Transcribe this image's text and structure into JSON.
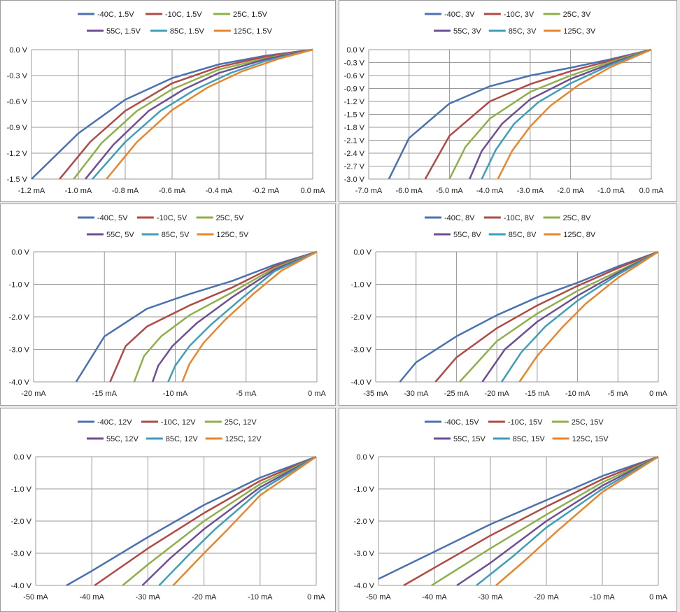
{
  "colors": {
    "-40C": "#4a72b0",
    "-10C": "#b04a46",
    "25C": "#8eb04a",
    "55C": "#6e4f94",
    "85C": "#3f9fb8",
    "125C": "#e8862e",
    "grid": "#9a9a9a"
  },
  "chart_data": [
    {
      "type": "line",
      "legend": {
        "position": "top",
        "rows": [
          [
            0,
            1,
            2
          ],
          [
            3,
            4,
            5
          ]
        ]
      },
      "xlim": [
        -1.2,
        0
      ],
      "ylim": [
        -1.5,
        0
      ],
      "xticks": [
        -1.2,
        -1.0,
        -0.8,
        -0.6,
        -0.4,
        -0.2,
        0.0
      ],
      "xtick_labels": [
        "-1.2 mA",
        "-1.0 mA",
        "-0.8 mA",
        "-0.6 mA",
        "-0.4 mA",
        "-0.2 mA",
        "0.0 mA"
      ],
      "yticks": [
        0,
        -0.3,
        -0.6,
        -0.9,
        -1.2,
        -1.5
      ],
      "ytick_labels": [
        "0.0 V",
        "-0.3 V",
        "-0.6 V",
        "-0.9 V",
        "-1.2 V",
        "-1.5 V"
      ],
      "grid": true,
      "series": [
        {
          "name": "-40C, 1.5V",
          "color_key": "-40C",
          "x": [
            0,
            -0.2,
            -0.4,
            -0.6,
            -0.8,
            -1.0,
            -1.2
          ],
          "y": [
            0,
            -0.07,
            -0.17,
            -0.33,
            -0.58,
            -0.97,
            -1.5
          ]
        },
        {
          "name": "-10C, 1.5V",
          "color_key": "-10C",
          "x": [
            0,
            -0.2,
            -0.4,
            -0.6,
            -0.8,
            -0.95,
            -1.08
          ],
          "y": [
            0,
            -0.08,
            -0.2,
            -0.39,
            -0.71,
            -1.07,
            -1.5
          ]
        },
        {
          "name": "25C, 1.5V",
          "color_key": "25C",
          "x": [
            0,
            -0.2,
            -0.4,
            -0.6,
            -0.75,
            -0.9,
            -1.02
          ],
          "y": [
            0,
            -0.1,
            -0.23,
            -0.46,
            -0.71,
            -1.08,
            -1.5
          ]
        },
        {
          "name": "55C, 1.5V",
          "color_key": "55C",
          "x": [
            0,
            -0.2,
            -0.4,
            -0.55,
            -0.7,
            -0.85,
            -0.97
          ],
          "y": [
            0,
            -0.11,
            -0.27,
            -0.46,
            -0.71,
            -1.1,
            -1.5
          ]
        },
        {
          "name": "85C, 1.5V",
          "color_key": "85C",
          "x": [
            0,
            -0.2,
            -0.35,
            -0.5,
            -0.65,
            -0.8,
            -0.94
          ],
          "y": [
            0,
            -0.13,
            -0.27,
            -0.46,
            -0.71,
            -1.07,
            -1.5
          ]
        },
        {
          "name": "125C, 1.5V",
          "color_key": "125C",
          "x": [
            0,
            -0.15,
            -0.3,
            -0.45,
            -0.6,
            -0.75,
            -0.88
          ],
          "y": [
            0,
            -0.11,
            -0.25,
            -0.44,
            -0.7,
            -1.07,
            -1.5
          ]
        }
      ]
    },
    {
      "type": "line",
      "legend": {
        "position": "top",
        "rows": [
          [
            0,
            1,
            2
          ],
          [
            3,
            4,
            5
          ]
        ]
      },
      "xlim": [
        -7,
        0
      ],
      "ylim": [
        -3.0,
        0
      ],
      "xticks": [
        -7,
        -6,
        -5,
        -4,
        -3,
        -2,
        -1,
        0
      ],
      "xtick_labels": [
        "-7.0 mA",
        "-6.0 mA",
        "-5.0 mA",
        "-4.0 mA",
        "-3.0 mA",
        "-2.0 mA",
        "-1.0 mA",
        "0.0 mA"
      ],
      "yticks": [
        0,
        -0.3,
        -0.6,
        -0.9,
        -1.2,
        -1.5,
        -1.8,
        -2.1,
        -2.4,
        -2.7,
        -3.0
      ],
      "ytick_labels": [
        "0.0 V",
        "-0.3 V",
        "-0.6 V",
        "-0.9 V",
        "-1.2 V",
        "-1.5 V",
        "-1.8 V",
        "-2.1 V",
        "-2.4 V",
        "-2.7 V",
        "-3.0 V"
      ],
      "grid": true,
      "series": [
        {
          "name": "-40C, 3V",
          "color_key": "-40C",
          "x": [
            0,
            -1,
            -2,
            -3,
            -4,
            -5,
            -6,
            -6.5
          ],
          "y": [
            0,
            -0.22,
            -0.42,
            -0.6,
            -0.85,
            -1.25,
            -2.05,
            -3.0
          ]
        },
        {
          "name": "-10C, 3V",
          "color_key": "-10C",
          "x": [
            0,
            -1,
            -2,
            -3,
            -4,
            -5,
            -5.6
          ],
          "y": [
            0,
            -0.25,
            -0.5,
            -0.8,
            -1.2,
            -2.0,
            -3.0
          ]
        },
        {
          "name": "25C, 3V",
          "color_key": "25C",
          "x": [
            0,
            -1,
            -2,
            -3,
            -4,
            -4.6,
            -5.0
          ],
          "y": [
            0,
            -0.28,
            -0.6,
            -0.98,
            -1.6,
            -2.25,
            -3.0
          ]
        },
        {
          "name": "55C, 3V",
          "color_key": "55C",
          "x": [
            0,
            -1,
            -2,
            -3,
            -3.7,
            -4.2,
            -4.5
          ],
          "y": [
            0,
            -0.32,
            -0.68,
            -1.15,
            -1.72,
            -2.35,
            -3.0
          ]
        },
        {
          "name": "85C, 3V",
          "color_key": "85C",
          "x": [
            0,
            -1,
            -2,
            -2.8,
            -3.4,
            -3.85,
            -4.2
          ],
          "y": [
            0,
            -0.35,
            -0.78,
            -1.22,
            -1.72,
            -2.32,
            -3.0
          ]
        },
        {
          "name": "125C, 3V",
          "color_key": "125C",
          "x": [
            0,
            -1,
            -1.8,
            -2.5,
            -3.0,
            -3.45,
            -3.8
          ],
          "y": [
            0,
            -0.4,
            -0.82,
            -1.3,
            -1.78,
            -2.35,
            -3.0
          ]
        }
      ]
    },
    {
      "type": "line",
      "legend": {
        "position": "top",
        "rows": [
          [
            0,
            1,
            2
          ],
          [
            3,
            4,
            5
          ]
        ]
      },
      "xlim": [
        -20,
        0
      ],
      "ylim": [
        -4,
        0
      ],
      "xticks": [
        -20,
        -15,
        -10,
        -5,
        0
      ],
      "xtick_labels": [
        "-20 mA",
        "-15 mA",
        "-10 mA",
        "-5 mA",
        "0 mA"
      ],
      "yticks": [
        0,
        -1,
        -2,
        -3,
        -4
      ],
      "ytick_labels": [
        "0.0 V",
        "-1.0 V",
        "-2.0 V",
        "-3.0 V",
        "-4.0 V"
      ],
      "grid": true,
      "series": [
        {
          "name": "-40C, 5V",
          "color_key": "-40C",
          "x": [
            0,
            -3,
            -6,
            -9,
            -12,
            -15,
            -17
          ],
          "y": [
            0,
            -0.4,
            -0.9,
            -1.3,
            -1.75,
            -2.6,
            -4.0
          ]
        },
        {
          "name": "-10C, 5V",
          "color_key": "-10C",
          "x": [
            0,
            -3,
            -6,
            -9,
            -12,
            -13.5,
            -14.6
          ],
          "y": [
            0,
            -0.45,
            -1.1,
            -1.65,
            -2.3,
            -2.9,
            -4.0
          ]
        },
        {
          "name": "25C, 5V",
          "color_key": "25C",
          "x": [
            0,
            -3,
            -6,
            -9,
            -11,
            -12.2,
            -12.9
          ],
          "y": [
            0,
            -0.5,
            -1.25,
            -1.95,
            -2.6,
            -3.2,
            -4.0
          ]
        },
        {
          "name": "55C, 5V",
          "color_key": "55C",
          "x": [
            0,
            -3,
            -6,
            -8.5,
            -10.2,
            -11.2,
            -11.6
          ],
          "y": [
            0,
            -0.55,
            -1.4,
            -2.2,
            -2.9,
            -3.5,
            -4.0
          ]
        },
        {
          "name": "85C, 5V",
          "color_key": "85C",
          "x": [
            0,
            -3,
            -5.5,
            -7.5,
            -9,
            -10,
            -10.5
          ],
          "y": [
            0,
            -0.6,
            -1.5,
            -2.25,
            -2.9,
            -3.5,
            -4.0
          ]
        },
        {
          "name": "125C, 5V",
          "color_key": "125C",
          "x": [
            0,
            -2.5,
            -4.5,
            -6.5,
            -8,
            -9,
            -9.5
          ],
          "y": [
            0,
            -0.58,
            -1.3,
            -2.1,
            -2.8,
            -3.45,
            -4.0
          ]
        }
      ]
    },
    {
      "type": "line",
      "legend": {
        "position": "top",
        "rows": [
          [
            0,
            1,
            2
          ],
          [
            3,
            4,
            5
          ]
        ]
      },
      "xlim": [
        -35,
        0
      ],
      "ylim": [
        -4,
        0
      ],
      "xticks": [
        -35,
        -30,
        -25,
        -20,
        -15,
        -10,
        -5,
        0
      ],
      "xtick_labels": [
        "-35 mA",
        "-30 mA",
        "-25 mA",
        "-20 mA",
        "-15 mA",
        "-10 mA",
        "-5 mA",
        "0 mA"
      ],
      "yticks": [
        0,
        -1,
        -2,
        -3,
        -4
      ],
      "ytick_labels": [
        "0.0 V",
        "-1.0 V",
        "-2.0 V",
        "-3.0 V",
        "-4.0 V"
      ],
      "grid": true,
      "series": [
        {
          "name": "-40C, 8V",
          "color_key": "-40C",
          "x": [
            0,
            -5,
            -10,
            -15,
            -20,
            -25,
            -30,
            -32
          ],
          "y": [
            0,
            -0.45,
            -0.95,
            -1.4,
            -1.95,
            -2.6,
            -3.4,
            -4.0
          ]
        },
        {
          "name": "-10C, 8V",
          "color_key": "-10C",
          "x": [
            0,
            -5,
            -10,
            -15,
            -20,
            -25,
            -27.6
          ],
          "y": [
            0,
            -0.5,
            -1.05,
            -1.65,
            -2.35,
            -3.25,
            -4.0
          ]
        },
        {
          "name": "25C, 8V",
          "color_key": "25C",
          "x": [
            0,
            -5,
            -10,
            -15,
            -20,
            -24.6
          ],
          "y": [
            0,
            -0.6,
            -1.2,
            -1.9,
            -2.75,
            -4.0
          ]
        },
        {
          "name": "55C, 8V",
          "color_key": "55C",
          "x": [
            0,
            -5,
            -10,
            -15,
            -19,
            -21.8
          ],
          "y": [
            0,
            -0.65,
            -1.35,
            -2.15,
            -3.0,
            -4.0
          ]
        },
        {
          "name": "85C, 8V",
          "color_key": "85C",
          "x": [
            0,
            -5,
            -10,
            -14,
            -17,
            -19.4
          ],
          "y": [
            0,
            -0.7,
            -1.5,
            -2.3,
            -3.1,
            -4.0
          ]
        },
        {
          "name": "125C, 8V",
          "color_key": "125C",
          "x": [
            0,
            -5,
            -9,
            -12,
            -15,
            -17.2
          ],
          "y": [
            0,
            -0.8,
            -1.6,
            -2.35,
            -3.2,
            -4.0
          ]
        }
      ]
    },
    {
      "type": "line",
      "legend": {
        "position": "top",
        "rows": [
          [
            0,
            1,
            2
          ],
          [
            3,
            4,
            5
          ]
        ]
      },
      "xlim": [
        -50,
        0
      ],
      "ylim": [
        -4,
        0
      ],
      "xticks": [
        -50,
        -40,
        -30,
        -20,
        -10,
        0
      ],
      "xtick_labels": [
        "-50 mA",
        "-40 mA",
        "-30 mA",
        "-20 mA",
        "-10 mA",
        "0 mA"
      ],
      "yticks": [
        0,
        -1,
        -2,
        -3,
        -4
      ],
      "ytick_labels": [
        "0.0 V",
        "-1.0 V",
        "-2.0 V",
        "-3.0 V",
        "-4.0 V"
      ],
      "grid": true,
      "series": [
        {
          "name": "-40C, 12V",
          "color_key": "-40C",
          "x": [
            0,
            -10,
            -20,
            -30,
            -40,
            -44.5
          ],
          "y": [
            0,
            -0.65,
            -1.5,
            -2.5,
            -3.55,
            -4.0
          ]
        },
        {
          "name": "-10C, 12V",
          "color_key": "-10C",
          "x": [
            0,
            -10,
            -20,
            -30,
            -39.5
          ],
          "y": [
            0,
            -0.75,
            -1.75,
            -2.85,
            -4.0
          ]
        },
        {
          "name": "25C, 12V",
          "color_key": "25C",
          "x": [
            0,
            -10,
            -20,
            -30,
            -34.5
          ],
          "y": [
            0,
            -0.85,
            -2.0,
            -3.35,
            -4.0
          ]
        },
        {
          "name": "55C, 12V",
          "color_key": "55C",
          "x": [
            0,
            -10,
            -20,
            -26,
            -31
          ],
          "y": [
            0,
            -0.95,
            -2.25,
            -3.15,
            -4.0
          ]
        },
        {
          "name": "85C, 12V",
          "color_key": "85C",
          "x": [
            0,
            -10,
            -18,
            -23,
            -28
          ],
          "y": [
            0,
            -1.05,
            -2.25,
            -3.1,
            -4.0
          ]
        },
        {
          "name": "125C, 12V",
          "color_key": "125C",
          "x": [
            0,
            -10,
            -16,
            -20,
            -25.5
          ],
          "y": [
            0,
            -1.2,
            -2.3,
            -3.0,
            -4.0
          ]
        }
      ]
    },
    {
      "type": "line",
      "legend": {
        "position": "top",
        "rows": [
          [
            0,
            1,
            2
          ],
          [
            3,
            4,
            5
          ]
        ]
      },
      "xlim": [
        -50,
        0
      ],
      "ylim": [
        -4,
        0
      ],
      "xticks": [
        -50,
        -40,
        -30,
        -20,
        -10,
        0
      ],
      "xtick_labels": [
        "-50 mA",
        "-40 mA",
        "-30 mA",
        "-20 mA",
        "-10 mA",
        "0 mA"
      ],
      "yticks": [
        0,
        -1,
        -2,
        -3,
        -4
      ],
      "ytick_labels": [
        "0.0 V",
        "-1.0 V",
        "-2.0 V",
        "-3.0 V",
        "-4.0 V"
      ],
      "grid": true,
      "series": [
        {
          "name": "-40C, 15V",
          "color_key": "-40C",
          "x": [
            0,
            -10,
            -20,
            -30,
            -40,
            -50
          ],
          "y": [
            0,
            -0.6,
            -1.35,
            -2.1,
            -2.95,
            -3.8
          ]
        },
        {
          "name": "-10C, 15V",
          "color_key": "-10C",
          "x": [
            0,
            -10,
            -20,
            -30,
            -40,
            -45.5
          ],
          "y": [
            0,
            -0.7,
            -1.55,
            -2.45,
            -3.45,
            -4.0
          ]
        },
        {
          "name": "25C, 15V",
          "color_key": "25C",
          "x": [
            0,
            -10,
            -20,
            -30,
            -40.5
          ],
          "y": [
            0,
            -0.8,
            -1.8,
            -2.85,
            -4.0
          ]
        },
        {
          "name": "55C, 15V",
          "color_key": "55C",
          "x": [
            0,
            -10,
            -20,
            -30,
            -36
          ],
          "y": [
            0,
            -0.9,
            -2.0,
            -3.3,
            -4.0
          ]
        },
        {
          "name": "85C, 15V",
          "color_key": "85C",
          "x": [
            0,
            -10,
            -20,
            -26,
            -32.5
          ],
          "y": [
            0,
            -1.0,
            -2.2,
            -3.1,
            -4.0
          ]
        },
        {
          "name": "125C, 15V",
          "color_key": "125C",
          "x": [
            0,
            -10,
            -18,
            -24,
            -29
          ],
          "y": [
            0,
            -1.1,
            -2.3,
            -3.25,
            -4.0
          ]
        }
      ]
    }
  ]
}
